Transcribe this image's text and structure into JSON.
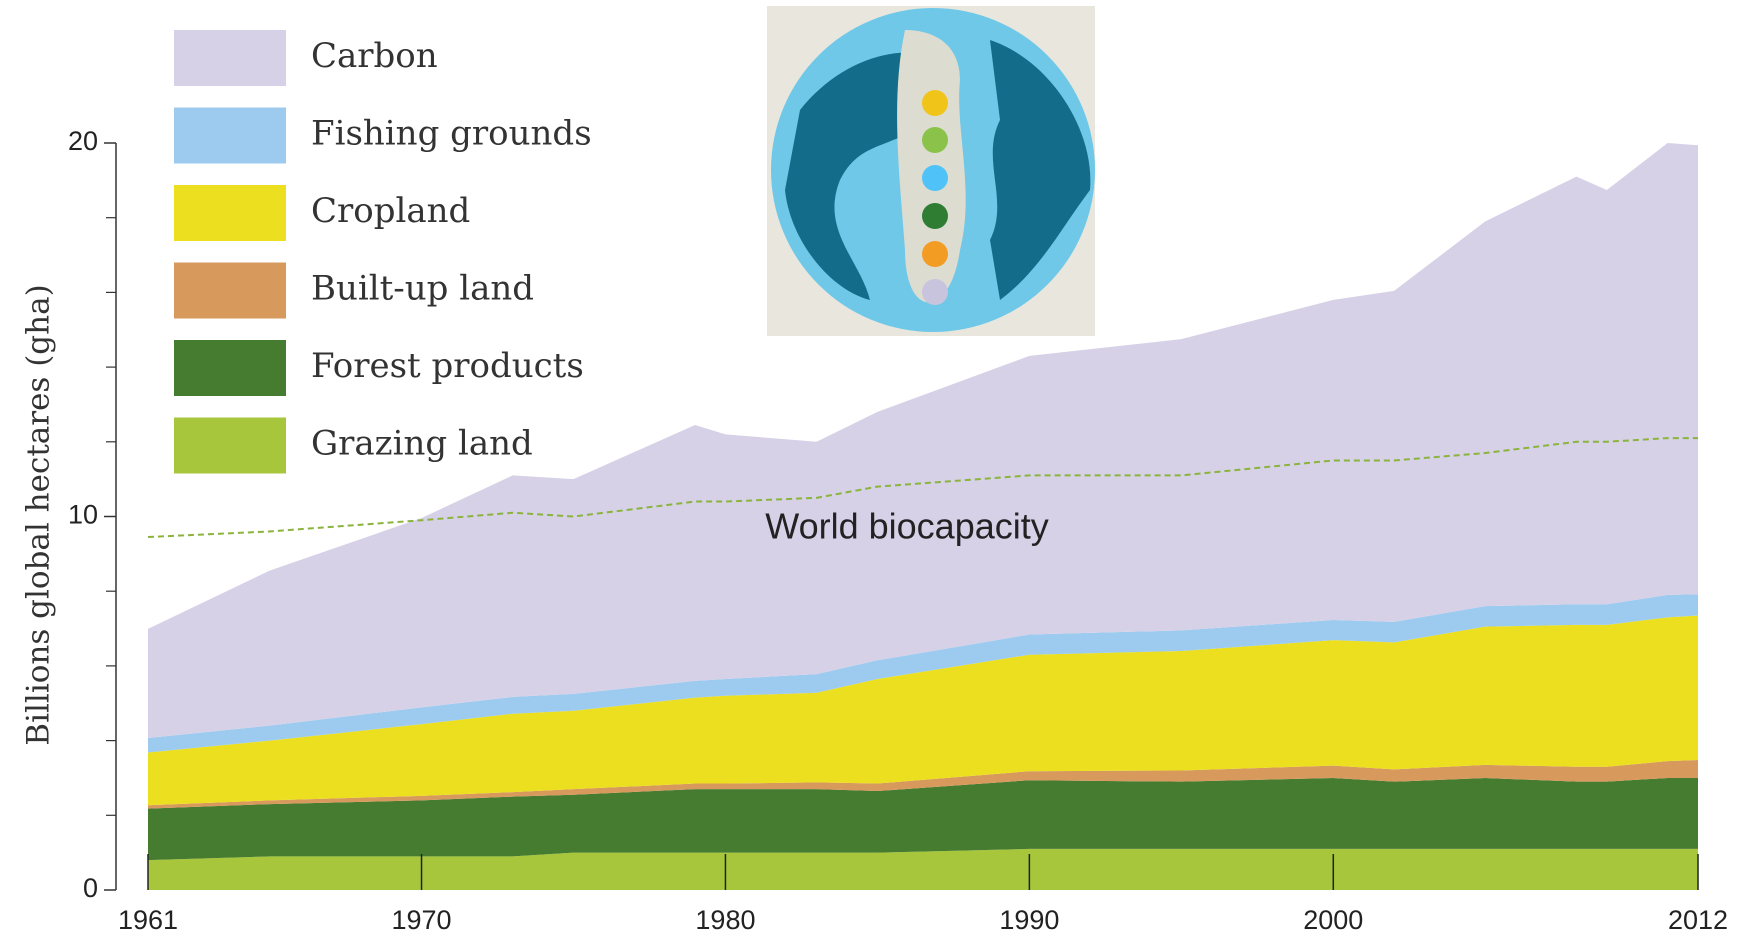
{
  "chart_data": {
    "type": "stacked_area",
    "y_label": "Billions global hectares (gha)",
    "x": [
      1961,
      1965,
      1970,
      1973,
      1975,
      1979,
      1980,
      1983,
      1985,
      1990,
      1995,
      2000,
      2002,
      2005,
      2008,
      2009,
      2011,
      2012
    ],
    "series": [
      {
        "name": "Carbon",
        "color": "#d6d1e7",
        "values": [
          2.92,
          4.15,
          5.07,
          5.93,
          5.75,
          6.85,
          6.55,
          6.22,
          6.65,
          7.46,
          7.8,
          8.57,
          8.86,
          10.3,
          11.45,
          11.09,
          12.1,
          12.02
        ]
      },
      {
        "name": "Fishing grounds",
        "color": "#9ccbef",
        "values": [
          0.39,
          0.4,
          0.45,
          0.45,
          0.45,
          0.45,
          0.45,
          0.5,
          0.5,
          0.54,
          0.55,
          0.54,
          0.55,
          0.55,
          0.55,
          0.55,
          0.6,
          0.57
        ]
      },
      {
        "name": "Cropland",
        "color": "#ebdf1f",
        "values": [
          1.41,
          1.6,
          1.92,
          2.1,
          2.1,
          2.3,
          2.35,
          2.4,
          2.8,
          3.12,
          3.2,
          3.36,
          3.4,
          3.7,
          3.8,
          3.8,
          3.85,
          3.87
        ]
      },
      {
        "name": "Built-up land",
        "color": "#d8995c",
        "values": [
          0.09,
          0.1,
          0.12,
          0.12,
          0.15,
          0.15,
          0.15,
          0.18,
          0.2,
          0.24,
          0.3,
          0.33,
          0.33,
          0.35,
          0.4,
          0.4,
          0.45,
          0.48
        ]
      },
      {
        "name": "Forest products",
        "color": "#467c30",
        "values": [
          1.38,
          1.4,
          1.5,
          1.6,
          1.55,
          1.7,
          1.7,
          1.7,
          1.65,
          1.84,
          1.8,
          1.9,
          1.8,
          1.9,
          1.8,
          1.8,
          1.9,
          1.9
        ]
      },
      {
        "name": "Grazing land",
        "color": "#a7c63b",
        "values": [
          0.8,
          0.9,
          0.9,
          0.9,
          1.0,
          1.0,
          1.0,
          1.0,
          1.0,
          1.1,
          1.1,
          1.1,
          1.1,
          1.1,
          1.1,
          1.1,
          1.1,
          1.1
        ]
      }
    ],
    "biocapacity": {
      "label": "World biocapacity",
      "color": "#8ab43c",
      "values": [
        9.45,
        9.6,
        9.9,
        10.1,
        10.0,
        10.4,
        10.4,
        10.5,
        10.8,
        11.1,
        11.1,
        11.5,
        11.5,
        11.7,
        12.0,
        12.0,
        12.1,
        12.1
      ]
    },
    "xlim": [
      1961,
      2012
    ],
    "xticks": [
      1961,
      1970,
      1980,
      1990,
      2000,
      2012
    ],
    "ylim": [
      0,
      20
    ],
    "yticks": [
      0,
      10,
      20
    ],
    "yminorticks": [
      2,
      4,
      6,
      8,
      12,
      14,
      16,
      18
    ]
  }
}
